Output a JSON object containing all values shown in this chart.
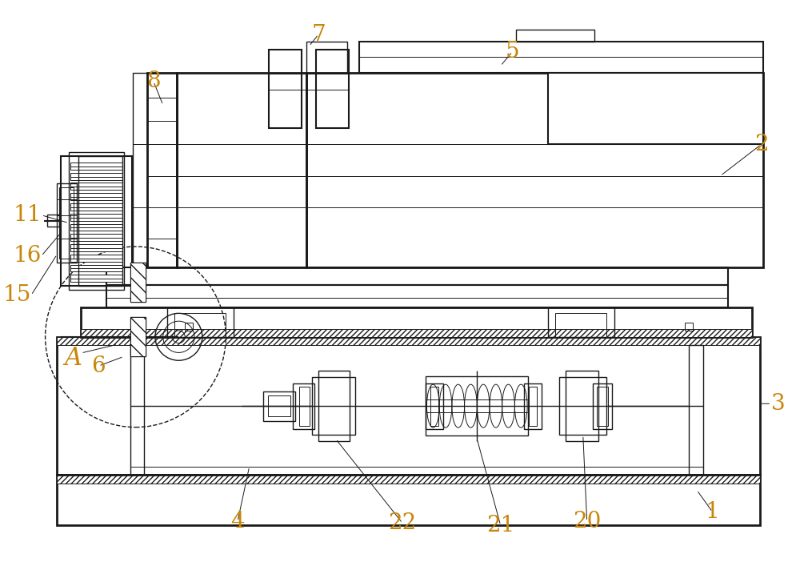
{
  "background_color": "#ffffff",
  "line_color": "#1a1a1a",
  "label_color": "#c8860a",
  "label_fontsize": 20,
  "figsize": [
    10.0,
    7.17
  ],
  "dpi": 100
}
